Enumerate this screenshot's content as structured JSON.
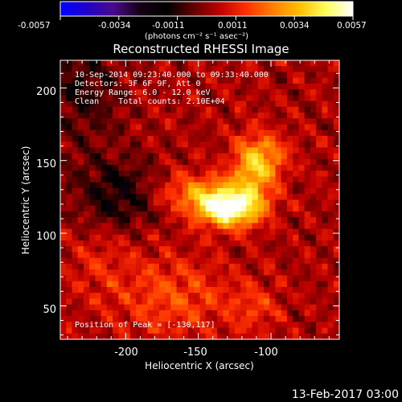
{
  "colorbar": {
    "ticks": [
      "-0.0057",
      "-0.0034",
      "-0.0011",
      "0.0011",
      "0.0034",
      "0.0057"
    ],
    "units": "(photons cm⁻² s⁻¹ asec⁻²)",
    "min": -0.0057,
    "max": 0.0057,
    "colors": [
      "#0000ff",
      "#2200c8",
      "#4a0a8a",
      "#140014",
      "#000000",
      "#600000",
      "#c00000",
      "#ff3000",
      "#ff8000",
      "#ffc000",
      "#ffff60",
      "#ffffff"
    ]
  },
  "plot": {
    "title": "Reconstructed RHESSI Image",
    "xlabel": "Heliocentric X (arcsec)",
    "ylabel": "Heliocentric Y (arcsec)",
    "xticks": [
      "-200",
      "-150",
      "-100"
    ],
    "yticks": [
      "50",
      "100",
      "150",
      "200"
    ]
  },
  "annotations": {
    "time_range": "10-Sep-2014 09:23:40.000 to 09:33:40.000",
    "detectors": "Detectors: 3F 6F 9F, Att 0",
    "energy": "Energy Range: 6.0 - 12.0 keV",
    "clean": "Clean    Total counts: 2.10E+04",
    "peak": "Position of Peak = [-130,117]"
  },
  "footer": {
    "date": "13-Feb-2017 03:00"
  },
  "chart_data": {
    "type": "heatmap",
    "title": "Reconstructed RHESSI Image",
    "xlabel": "Heliocentric X (arcsec)",
    "ylabel": "Heliocentric Y (arcsec)",
    "xlim": [
      -245,
      -53
    ],
    "ylim": [
      27,
      219
    ],
    "colorscale_range": [
      -0.0057,
      0.0057
    ],
    "peak_position": [
      -130,
      117
    ],
    "grid_size": 48,
    "grid": false
  }
}
